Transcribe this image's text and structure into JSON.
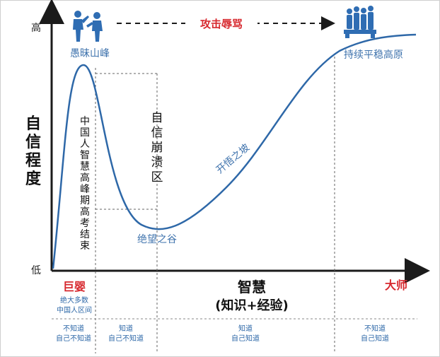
{
  "colors": {
    "curve": "#2e68a8",
    "axis": "#1b1b1b",
    "red": "#d7282e",
    "blue_text": "#3f73ad",
    "dash": "#555555",
    "icon": "#2f6db3"
  },
  "icons": {
    "left": "fighting-people-icon",
    "right": "standing-crowd-icon"
  },
  "axis": {
    "y_title": [
      "自",
      "信",
      "程",
      "度"
    ],
    "y_high": "高",
    "y_low": "低",
    "x_title": "智慧",
    "x_subtitle": "(知识+经验)"
  },
  "top_banner": "攻击辱骂",
  "peaks": {
    "peak_label": "愚昧山峰",
    "valley_label": "绝望之谷",
    "slope_label": "开悟之坡",
    "plateau_label": "持续平稳高原"
  },
  "vertical_text": {
    "left_column": [
      "中",
      "国",
      "人",
      "智",
      "慧",
      "高",
      "峰",
      "期",
      "高",
      "考",
      "结",
      "束"
    ],
    "collapse_zone": [
      "自",
      "信",
      "崩",
      "溃",
      "区"
    ]
  },
  "stages": {
    "giant_baby": "巨婴",
    "giant_baby_note_1": "绝大多数",
    "giant_baby_note_2": "中国人区间",
    "master": "大师"
  },
  "quadrants": [
    {
      "line1": "不知道",
      "line2": "自己不知道"
    },
    {
      "line1": "知道",
      "line2": "自己不知道"
    },
    {
      "line1": "知道",
      "line2": "自己知道"
    },
    {
      "line1": "不知道",
      "line2": "自己知道"
    }
  ]
}
